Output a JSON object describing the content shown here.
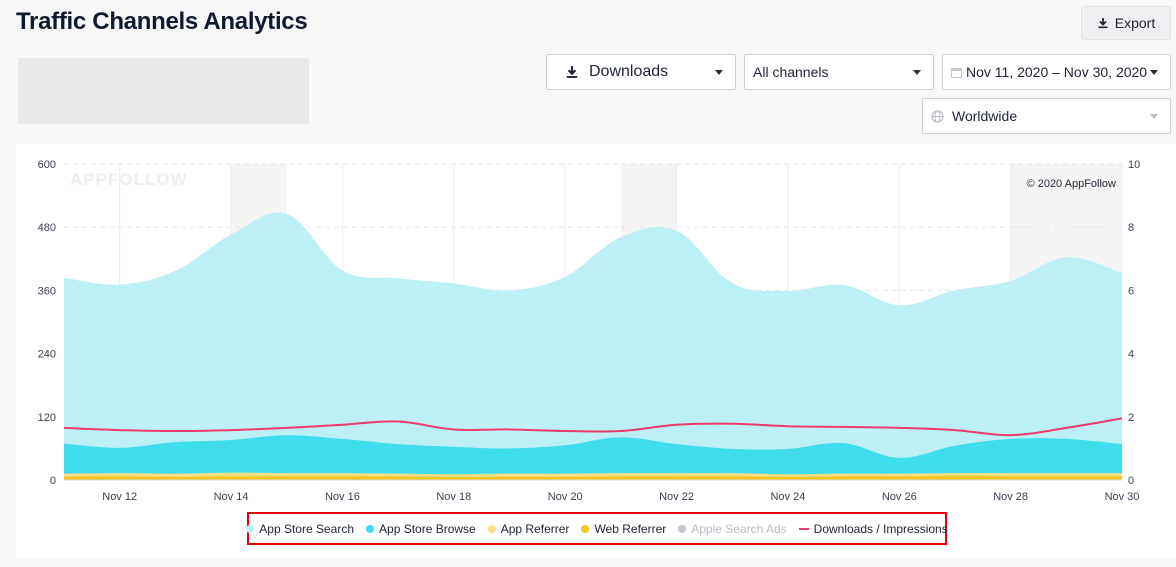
{
  "header": {
    "title": "Traffic Channels Analytics",
    "export_label": "Export"
  },
  "filters": {
    "metric": "Downloads",
    "channels": "All channels",
    "date_range": "Nov 11, 2020 – Nov 30, 2020",
    "region": "Worldwide"
  },
  "chart": {
    "watermark": "APPFOLLOW",
    "copyright": "© 2020 AppFollow"
  },
  "chart_data": {
    "type": "area",
    "x": [
      "Nov 11",
      "Nov 12",
      "Nov 13",
      "Nov 14",
      "Nov 15",
      "Nov 16",
      "Nov 17",
      "Nov 18",
      "Nov 19",
      "Nov 20",
      "Nov 21",
      "Nov 22",
      "Nov 23",
      "Nov 24",
      "Nov 25",
      "Nov 26",
      "Nov 27",
      "Nov 28",
      "Nov 29",
      "Nov 30"
    ],
    "x_tick_labels": [
      "Nov 12",
      "Nov 14",
      "Nov 16",
      "Nov 18",
      "Nov 20",
      "Nov 22",
      "Nov 24",
      "Nov 26",
      "Nov 28",
      "Nov 30"
    ],
    "y_left_ticks": [
      "0",
      "120",
      "240",
      "360",
      "480",
      "600"
    ],
    "y_right_ticks": [
      "0",
      "2",
      "4",
      "6",
      "8",
      "10"
    ],
    "ylim_left": [
      0,
      600
    ],
    "ylim_right": [
      0,
      10
    ],
    "stacked": true,
    "shaded_ranges": [
      [
        "Nov 14",
        "Nov 15"
      ],
      [
        "Nov 21",
        "Nov 22"
      ],
      [
        "Nov 28",
        "Nov 30"
      ]
    ],
    "series": [
      {
        "name": "App Store Search",
        "color": "#bdf0f5",
        "axis": "left",
        "values": [
          315,
          310,
          325,
          390,
          420,
          320,
          315,
          310,
          300,
          320,
          380,
          405,
          315,
          300,
          300,
          290,
          295,
          300,
          345,
          325
        ]
      },
      {
        "name": "App Store Browse",
        "color": "#3fdcec",
        "axis": "left",
        "values": [
          57,
          48,
          60,
          62,
          72,
          65,
          56,
          52,
          48,
          54,
          68,
          55,
          46,
          48,
          58,
          30,
          52,
          65,
          65,
          55
        ]
      },
      {
        "name": "App Referrer",
        "color": "#fbe08a",
        "axis": "left",
        "values": [
          5,
          6,
          6,
          7,
          6,
          6,
          5,
          5,
          6,
          6,
          6,
          6,
          6,
          5,
          5,
          5,
          5,
          6,
          6,
          6
        ]
      },
      {
        "name": "Web Referrer",
        "color": "#f7c51f",
        "axis": "left",
        "values": [
          7,
          7,
          6,
          7,
          7,
          7,
          7,
          6,
          6,
          6,
          7,
          7,
          7,
          6,
          7,
          7,
          8,
          7,
          7,
          7
        ]
      },
      {
        "name": "Apple Search Ads",
        "color": "#c3c7d0",
        "axis": "left",
        "disabled": true,
        "values": [
          0,
          0,
          0,
          0,
          0,
          0,
          0,
          0,
          0,
          0,
          0,
          0,
          0,
          0,
          0,
          0,
          0,
          0,
          0,
          0
        ]
      },
      {
        "name": "Downloads / Impressions",
        "color": "#ec3b6a",
        "axis": "right",
        "type": "line",
        "values": [
          1.65,
          1.58,
          1.55,
          1.58,
          1.65,
          1.75,
          1.85,
          1.6,
          1.6,
          1.55,
          1.55,
          1.75,
          1.78,
          1.7,
          1.68,
          1.65,
          1.58,
          1.42,
          1.65,
          1.95
        ]
      }
    ]
  }
}
